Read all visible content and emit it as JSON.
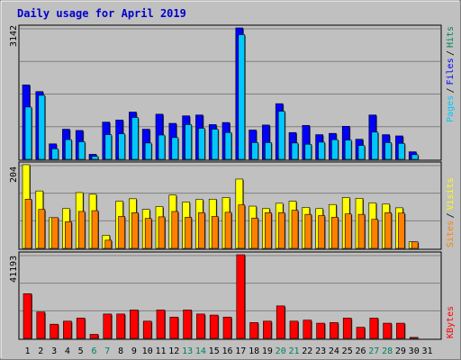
{
  "title": "Daily usage for April 2019",
  "colors": {
    "background": "#c0c0c0",
    "panel": "#c0c0c0",
    "grid": "#808080",
    "title": "#0000cc",
    "hits": "#00805c",
    "files": "#0000ff",
    "pages": "#00c8ff",
    "visits": "#ffff00",
    "sites": "#ff8000",
    "kbytes": "#ff0000",
    "weekend_day": "#00805c",
    "weekday": "#000000"
  },
  "chart_data": [
    {
      "type": "bar",
      "panel": "hits-files-pages",
      "categories": [
        "1",
        "2",
        "3",
        "4",
        "5",
        "6",
        "7",
        "8",
        "9",
        "10",
        "11",
        "12",
        "13",
        "14",
        "15",
        "16",
        "17",
        "18",
        "19",
        "20",
        "21",
        "22",
        "23",
        "24",
        "25",
        "26",
        "27",
        "28",
        "29",
        "30",
        "31"
      ],
      "weekend_days": [
        "6",
        "7",
        "13",
        "14",
        "20",
        "21",
        "27",
        "28"
      ],
      "ymax_label": "3142",
      "ylim": [
        0,
        3142
      ],
      "legend": [
        "Pages",
        "Files",
        "Hits"
      ],
      "series": [
        {
          "name": "Hits",
          "values": [
            1780,
            1620,
            370,
            720,
            690,
            120,
            890,
            940,
            1130,
            720,
            1080,
            860,
            1040,
            1060,
            830,
            880,
            3142,
            700,
            820,
            1330,
            640,
            810,
            590,
            620,
            790,
            480,
            1060,
            590,
            560,
            180,
            0
          ]
        },
        {
          "name": "Files",
          "values": [
            1780,
            1620,
            370,
            720,
            690,
            120,
            890,
            940,
            1130,
            720,
            1080,
            860,
            1040,
            1060,
            830,
            880,
            3142,
            700,
            820,
            1330,
            640,
            810,
            590,
            620,
            790,
            480,
            1060,
            590,
            560,
            180,
            0
          ]
        },
        {
          "name": "Pages",
          "values": [
            1250,
            1530,
            250,
            470,
            420,
            70,
            590,
            610,
            1000,
            390,
            580,
            520,
            830,
            740,
            720,
            640,
            2980,
            400,
            400,
            1150,
            390,
            360,
            410,
            470,
            460,
            330,
            650,
            400,
            380,
            110,
            0
          ]
        }
      ]
    },
    {
      "type": "bar",
      "panel": "visits-sites",
      "categories": [
        "1",
        "2",
        "3",
        "4",
        "5",
        "6",
        "7",
        "8",
        "9",
        "10",
        "11",
        "12",
        "13",
        "14",
        "15",
        "16",
        "17",
        "18",
        "19",
        "20",
        "21",
        "22",
        "23",
        "24",
        "25",
        "26",
        "27",
        "28",
        "29",
        "30",
        "31"
      ],
      "ymax_label": "204",
      "ylim": [
        0,
        204
      ],
      "legend": [
        "Sites",
        "Visits"
      ],
      "series": [
        {
          "name": "Visits",
          "values": [
            204,
            140,
            75,
            97,
            136,
            132,
            32,
            115,
            121,
            95,
            102,
            130,
            113,
            119,
            120,
            124,
            169,
            103,
            97,
            110,
            115,
            100,
            97,
            107,
            124,
            122,
            111,
            108,
            99,
            16,
            0
          ]
        },
        {
          "name": "Sites",
          "values": [
            120,
            95,
            75,
            65,
            90,
            92,
            20,
            78,
            87,
            73,
            77,
            90,
            76,
            87,
            78,
            88,
            106,
            74,
            87,
            87,
            93,
            83,
            80,
            76,
            84,
            83,
            71,
            87,
            86,
            16,
            0
          ]
        }
      ]
    },
    {
      "type": "bar",
      "panel": "kbytes",
      "categories": [
        "1",
        "2",
        "3",
        "4",
        "5",
        "6",
        "7",
        "8",
        "9",
        "10",
        "11",
        "12",
        "13",
        "14",
        "15",
        "16",
        "17",
        "18",
        "19",
        "20",
        "21",
        "22",
        "23",
        "24",
        "25",
        "26",
        "27",
        "28",
        "29",
        "30",
        "31"
      ],
      "ymax_label": "41193",
      "ylim": [
        0,
        41193
      ],
      "legend": [
        "KBytes"
      ],
      "series": [
        {
          "name": "KBytes",
          "values": [
            22000,
            13000,
            7000,
            8500,
            10000,
            2000,
            12000,
            12000,
            14000,
            8500,
            14000,
            10500,
            14000,
            12000,
            11500,
            10500,
            41193,
            7800,
            8500,
            16000,
            8500,
            9000,
            7500,
            7800,
            10000,
            5500,
            10000,
            7500,
            7500,
            500,
            0
          ]
        }
      ]
    }
  ]
}
